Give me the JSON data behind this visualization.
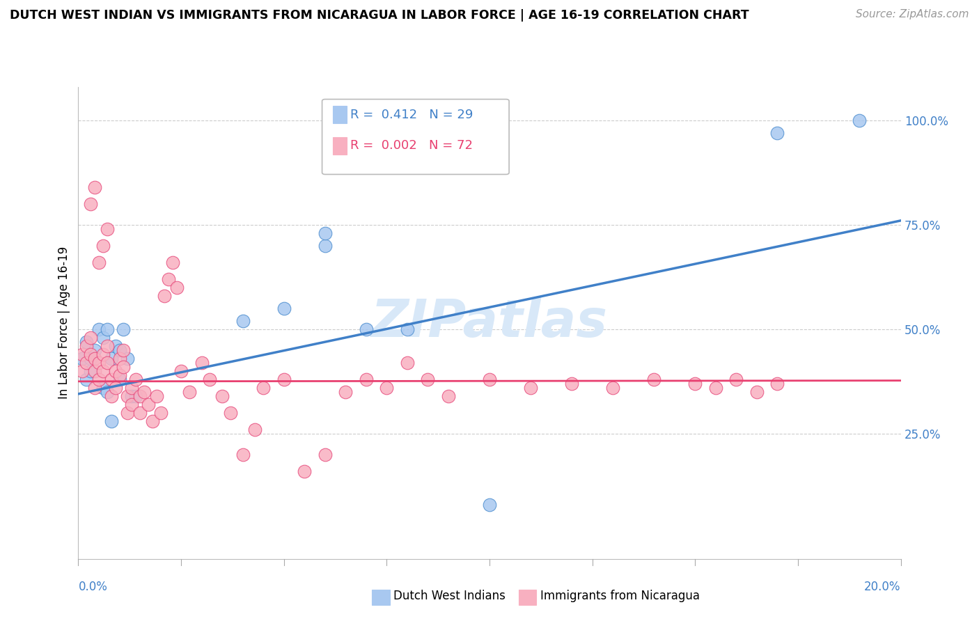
{
  "title": "DUTCH WEST INDIAN VS IMMIGRANTS FROM NICARAGUA IN LABOR FORCE | AGE 16-19 CORRELATION CHART",
  "source": "Source: ZipAtlas.com",
  "ylabel": "In Labor Force | Age 16-19",
  "legend_blue_r": "0.412",
  "legend_blue_n": "29",
  "legend_pink_r": "0.002",
  "legend_pink_n": "72",
  "blue_color": "#A8C8F0",
  "pink_color": "#F8B0C0",
  "blue_edge_color": "#5090D0",
  "pink_edge_color": "#E85080",
  "blue_line_color": "#4080C8",
  "pink_line_color": "#E84070",
  "watermark_color": "#D8E8F8",
  "grid_color": "#CCCCCC",
  "blue_scatter_x": [
    0.001,
    0.002,
    0.003,
    0.004,
    0.005,
    0.006,
    0.007,
    0.008,
    0.009,
    0.01,
    0.011,
    0.012,
    0.013,
    0.014,
    0.002,
    0.003,
    0.006,
    0.007,
    0.008,
    0.01,
    0.04,
    0.05,
    0.06,
    0.06,
    0.07,
    0.08,
    0.1,
    0.17,
    0.19
  ],
  "blue_scatter_y": [
    0.43,
    0.47,
    0.43,
    0.45,
    0.5,
    0.48,
    0.5,
    0.43,
    0.46,
    0.45,
    0.5,
    0.43,
    0.34,
    0.34,
    0.38,
    0.4,
    0.36,
    0.35,
    0.28,
    0.38,
    0.52,
    0.55,
    0.7,
    0.73,
    0.5,
    0.5,
    0.08,
    0.97,
    1.0
  ],
  "pink_scatter_x": [
    0.001,
    0.001,
    0.002,
    0.002,
    0.003,
    0.003,
    0.004,
    0.004,
    0.004,
    0.005,
    0.005,
    0.006,
    0.006,
    0.007,
    0.007,
    0.008,
    0.008,
    0.009,
    0.009,
    0.01,
    0.01,
    0.011,
    0.011,
    0.012,
    0.012,
    0.013,
    0.013,
    0.014,
    0.015,
    0.015,
    0.016,
    0.017,
    0.018,
    0.019,
    0.02,
    0.021,
    0.022,
    0.023,
    0.024,
    0.025,
    0.027,
    0.03,
    0.032,
    0.035,
    0.037,
    0.04,
    0.043,
    0.045,
    0.05,
    0.055,
    0.06,
    0.065,
    0.07,
    0.075,
    0.08,
    0.085,
    0.09,
    0.1,
    0.11,
    0.12,
    0.13,
    0.14,
    0.15,
    0.155,
    0.16,
    0.165,
    0.17,
    0.005,
    0.006,
    0.007,
    0.003,
    0.004
  ],
  "pink_scatter_y": [
    0.44,
    0.4,
    0.46,
    0.42,
    0.48,
    0.44,
    0.43,
    0.4,
    0.36,
    0.42,
    0.38,
    0.44,
    0.4,
    0.46,
    0.42,
    0.38,
    0.34,
    0.4,
    0.36,
    0.43,
    0.39,
    0.45,
    0.41,
    0.34,
    0.3,
    0.36,
    0.32,
    0.38,
    0.34,
    0.3,
    0.35,
    0.32,
    0.28,
    0.34,
    0.3,
    0.58,
    0.62,
    0.66,
    0.6,
    0.4,
    0.35,
    0.42,
    0.38,
    0.34,
    0.3,
    0.2,
    0.26,
    0.36,
    0.38,
    0.16,
    0.2,
    0.35,
    0.38,
    0.36,
    0.42,
    0.38,
    0.34,
    0.38,
    0.36,
    0.37,
    0.36,
    0.38,
    0.37,
    0.36,
    0.38,
    0.35,
    0.37,
    0.66,
    0.7,
    0.74,
    0.8,
    0.84
  ],
  "blue_line_x0": 0.0,
  "blue_line_y0": 0.345,
  "blue_line_x1": 0.2,
  "blue_line_y1": 0.76,
  "pink_line_x0": 0.0,
  "pink_line_y0": 0.375,
  "pink_line_x1": 0.2,
  "pink_line_y1": 0.377,
  "ylim_min": -0.05,
  "ylim_max": 1.08,
  "xlim_min": 0.0,
  "xlim_max": 0.2
}
